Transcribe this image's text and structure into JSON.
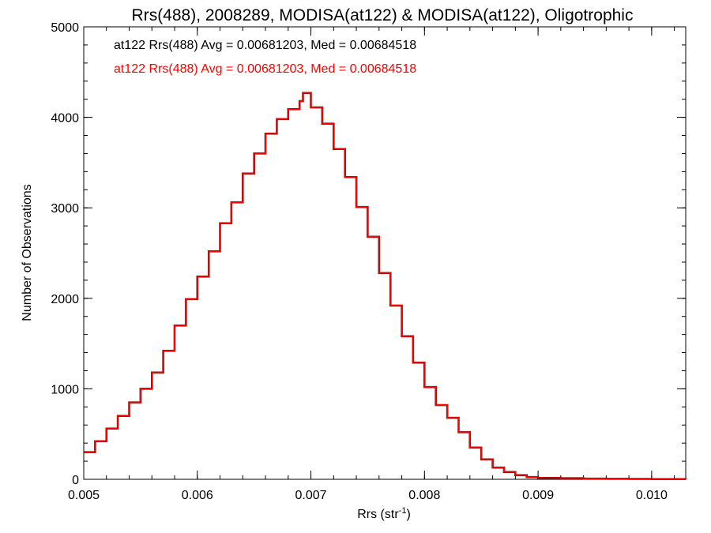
{
  "chart_data": {
    "type": "histogram",
    "title": "Rrs(488), 2008289, MODISA(at122) & MODISA(at122), Oligotrophic",
    "xlabel": "Rrs (str",
    "xlabel_sup": "-1",
    "xlabel_suffix": ")",
    "ylabel": "Number of Observations",
    "xlim": [
      0.005,
      0.0103
    ],
    "ylim": [
      0,
      5000
    ],
    "x_ticks": [
      0.005,
      0.006,
      0.007,
      0.008,
      0.009,
      0.01
    ],
    "x_tick_labels": [
      "0.005",
      "0.006",
      "0.007",
      "0.008",
      "0.009",
      "0.010"
    ],
    "y_ticks": [
      0,
      1000,
      2000,
      3000,
      4000,
      5000
    ],
    "y_tick_labels": [
      "0",
      "1000",
      "2000",
      "3000",
      "4000",
      "5000"
    ],
    "grid": false,
    "annotations": [
      {
        "text": "at122 Rrs(488) Avg = 0.00681203, Med = 0.00684518",
        "color": "#000000"
      },
      {
        "text": "at122 Rrs(488) Avg = 0.00681203, Med = 0.00684518",
        "color": "#ff0000"
      }
    ],
    "series": [
      {
        "color": "#000000",
        "x": [
          0.005,
          0.0051,
          0.0052,
          0.0053,
          0.0054,
          0.0055,
          0.0056,
          0.0057,
          0.0058,
          0.0059,
          0.006,
          0.0061,
          0.0062,
          0.0063,
          0.0064,
          0.0065,
          0.0066,
          0.0067,
          0.0068,
          0.0069,
          0.00693,
          0.007,
          0.0071,
          0.0072,
          0.0073,
          0.0074,
          0.0075,
          0.0076,
          0.0077,
          0.0078,
          0.0079,
          0.008,
          0.0081,
          0.0082,
          0.0083,
          0.0084,
          0.0085,
          0.0086,
          0.0087,
          0.0088,
          0.0089,
          0.009,
          0.0092,
          0.0094,
          0.0096,
          0.0098,
          0.01,
          0.0103
        ],
        "y": [
          300,
          420,
          560,
          700,
          850,
          1000,
          1180,
          1420,
          1700,
          1990,
          2240,
          2520,
          2830,
          3060,
          3380,
          3600,
          3820,
          3980,
          4090,
          4180,
          4270,
          4110,
          3930,
          3650,
          3340,
          3010,
          2680,
          2280,
          1920,
          1580,
          1290,
          1020,
          820,
          680,
          520,
          350,
          220,
          130,
          80,
          45,
          25,
          15,
          12,
          8,
          5,
          4,
          3,
          2
        ]
      },
      {
        "color": "#ff0000",
        "x": [
          0.005,
          0.0051,
          0.0052,
          0.0053,
          0.0054,
          0.0055,
          0.0056,
          0.0057,
          0.0058,
          0.0059,
          0.006,
          0.0061,
          0.0062,
          0.0063,
          0.0064,
          0.0065,
          0.0066,
          0.0067,
          0.0068,
          0.0069,
          0.00693,
          0.007,
          0.0071,
          0.0072,
          0.0073,
          0.0074,
          0.0075,
          0.0076,
          0.0077,
          0.0078,
          0.0079,
          0.008,
          0.0081,
          0.0082,
          0.0083,
          0.0084,
          0.0085,
          0.0086,
          0.0087,
          0.0088,
          0.0089,
          0.009,
          0.0092,
          0.0094,
          0.0096,
          0.0098,
          0.01,
          0.0103
        ],
        "y": [
          300,
          420,
          560,
          700,
          850,
          1000,
          1180,
          1420,
          1700,
          1990,
          2240,
          2520,
          2830,
          3060,
          3380,
          3600,
          3820,
          3980,
          4090,
          4180,
          4270,
          4110,
          3930,
          3650,
          3340,
          3010,
          2680,
          2280,
          1920,
          1580,
          1290,
          1020,
          820,
          680,
          520,
          350,
          220,
          130,
          80,
          45,
          25,
          15,
          12,
          8,
          5,
          4,
          3,
          2
        ]
      }
    ]
  }
}
